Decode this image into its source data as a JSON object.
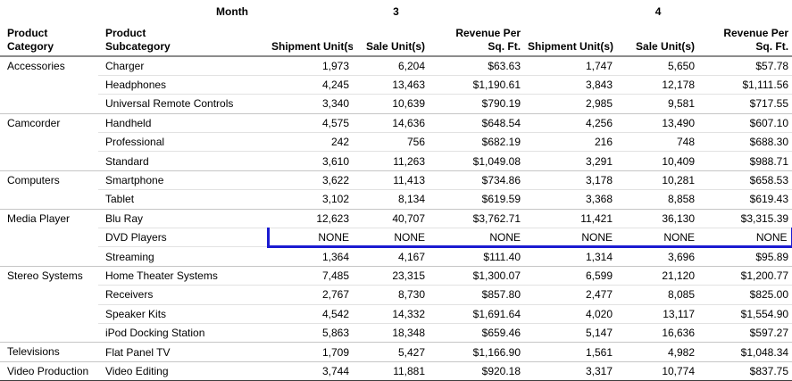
{
  "colors": {
    "highlight_border": "#1b1bd1",
    "header_rule": "#8c8c8c",
    "group_rule": "#c6c6c6",
    "row_rule": "#e2e2e2",
    "bottom_rule": "#3d3d3d"
  },
  "header": {
    "month_label": "Month",
    "months": [
      "3",
      "4"
    ],
    "columns": {
      "category": [
        "Product",
        "Category"
      ],
      "subcategory": [
        "Product",
        "Subcategory"
      ],
      "shipment": "Shipment Unit(s)",
      "sale": "Sale Unit(s)",
      "revenue": [
        "Revenue Per",
        "Sq. Ft."
      ]
    }
  },
  "groups": [
    {
      "category": "Accessories",
      "rows": [
        {
          "subcategory": "Charger",
          "values": [
            "1,973",
            "6,204",
            "$63.63",
            "1,747",
            "5,650",
            "$57.78"
          ]
        },
        {
          "subcategory": "Headphones",
          "values": [
            "4,245",
            "13,463",
            "$1,190.61",
            "3,843",
            "12,178",
            "$1,111.56"
          ]
        },
        {
          "subcategory": "Universal Remote Controls",
          "values": [
            "3,340",
            "10,639",
            "$790.19",
            "2,985",
            "9,581",
            "$717.55"
          ]
        }
      ]
    },
    {
      "category": "Camcorder",
      "rows": [
        {
          "subcategory": "Handheld",
          "values": [
            "4,575",
            "14,636",
            "$648.54",
            "4,256",
            "13,490",
            "$607.10"
          ]
        },
        {
          "subcategory": "Professional",
          "values": [
            "242",
            "756",
            "$682.19",
            "216",
            "748",
            "$688.30"
          ]
        },
        {
          "subcategory": "Standard",
          "values": [
            "3,610",
            "11,263",
            "$1,049.08",
            "3,291",
            "10,409",
            "$988.71"
          ]
        }
      ]
    },
    {
      "category": "Computers",
      "rows": [
        {
          "subcategory": "Smartphone",
          "values": [
            "3,622",
            "11,413",
            "$734.86",
            "3,178",
            "10,281",
            "$658.53"
          ]
        },
        {
          "subcategory": "Tablet",
          "values": [
            "3,102",
            "8,134",
            "$619.59",
            "3,368",
            "8,858",
            "$619.43"
          ]
        }
      ]
    },
    {
      "category": "Media Player",
      "rows": [
        {
          "subcategory": "Blu Ray",
          "values": [
            "12,623",
            "40,707",
            "$3,762.71",
            "11,421",
            "36,130",
            "$3,315.39"
          ]
        },
        {
          "subcategory": "DVD Players",
          "values": [
            "NONE",
            "NONE",
            "NONE",
            "NONE",
            "NONE",
            "NONE"
          ],
          "highlighted": true
        },
        {
          "subcategory": "Streaming",
          "values": [
            "1,364",
            "4,167",
            "$111.40",
            "1,314",
            "3,696",
            "$95.89"
          ]
        }
      ]
    },
    {
      "category": "Stereo Systems",
      "rows": [
        {
          "subcategory": "Home Theater Systems",
          "values": [
            "7,485",
            "23,315",
            "$1,300.07",
            "6,599",
            "21,120",
            "$1,200.77"
          ]
        },
        {
          "subcategory": "Receivers",
          "values": [
            "2,767",
            "8,730",
            "$857.80",
            "2,477",
            "8,085",
            "$825.00"
          ]
        },
        {
          "subcategory": "Speaker Kits",
          "values": [
            "4,542",
            "14,332",
            "$1,691.64",
            "4,020",
            "13,117",
            "$1,554.90"
          ]
        },
        {
          "subcategory": "iPod Docking Station",
          "values": [
            "5,863",
            "18,348",
            "$659.46",
            "5,147",
            "16,636",
            "$597.27"
          ]
        }
      ]
    },
    {
      "category": "Televisions",
      "rows": [
        {
          "subcategory": "Flat Panel TV",
          "values": [
            "1,709",
            "5,427",
            "$1,166.90",
            "1,561",
            "4,982",
            "$1,048.34"
          ]
        }
      ]
    },
    {
      "category": "Video Production",
      "rows": [
        {
          "subcategory": "Video Editing",
          "values": [
            "3,744",
            "11,881",
            "$920.18",
            "3,317",
            "10,774",
            "$837.75"
          ]
        }
      ]
    }
  ]
}
